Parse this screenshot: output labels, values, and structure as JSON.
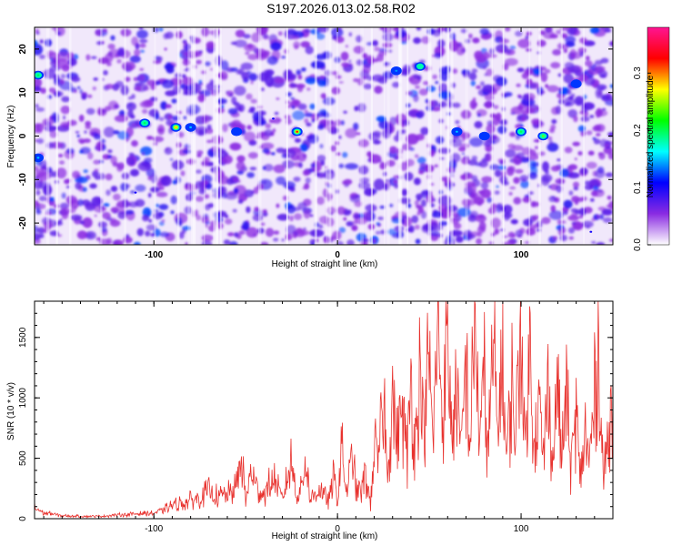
{
  "figure": {
    "title": "S197.2026.013.02.58.R02"
  },
  "chart_data": [
    {
      "type": "heatmap",
      "title": "S197.2026.013.02.58.R02",
      "xlabel": "Height of straight line (km)",
      "ylabel": "Frequency (Hz)",
      "xlim": [
        -165,
        150
      ],
      "ylim": [
        -25,
        25
      ],
      "xticks": [
        -100,
        0,
        100
      ],
      "yticks": [
        -20,
        -10,
        0,
        10,
        20
      ],
      "colorbar": {
        "label": "Normalized spectral amplitude",
        "range": [
          0.0,
          0.38
        ],
        "ticks": [
          0.0,
          0.1,
          0.2,
          0.3
        ],
        "colors": [
          "#ffffff",
          "#8a2be2",
          "#0000ff",
          "#00ffff",
          "#00ff00",
          "#ffff00",
          "#ff0000",
          "#ff1493"
        ]
      },
      "hotspots": [
        {
          "x": -105,
          "y": 3,
          "value": 0.2
        },
        {
          "x": -88,
          "y": 2,
          "value": 0.28
        },
        {
          "x": -80,
          "y": 2,
          "value": 0.15
        },
        {
          "x": -55,
          "y": 1,
          "value": 0.12
        },
        {
          "x": -22,
          "y": 1,
          "value": 0.32
        },
        {
          "x": -35,
          "y": 4,
          "value": 0.1
        },
        {
          "x": 45,
          "y": 16,
          "value": 0.18
        },
        {
          "x": 32,
          "y": 15,
          "value": 0.14
        },
        {
          "x": 65,
          "y": 1,
          "value": 0.15
        },
        {
          "x": 80,
          "y": 0,
          "value": 0.12
        },
        {
          "x": 100,
          "y": 1,
          "value": 0.2
        },
        {
          "x": 112,
          "y": 0,
          "value": 0.24
        },
        {
          "x": 130,
          "y": 12,
          "value": 0.12
        },
        {
          "x": -163,
          "y": 14,
          "value": 0.2
        },
        {
          "x": -163,
          "y": -5,
          "value": 0.15
        },
        {
          "x": -110,
          "y": -13,
          "value": 0.1
        },
        {
          "x": 138,
          "y": -22,
          "value": 0.1
        }
      ]
    },
    {
      "type": "line",
      "xlabel": "Height of straight line (km)",
      "ylabel": "SNR (10 * v/v)",
      "xlim": [
        -165,
        150
      ],
      "ylim": [
        0,
        1800
      ],
      "xticks": [
        -100,
        0,
        100
      ],
      "yticks": [
        0,
        500,
        1000,
        1500
      ],
      "series": [
        {
          "color": "#e8322e",
          "x": [
            -165,
            -160,
            -150,
            -140,
            -130,
            -120,
            -110,
            -100,
            -95,
            -90,
            -85,
            -80,
            -75,
            -70,
            -65,
            -60,
            -55,
            -52,
            -50,
            -47,
            -45,
            -40,
            -35,
            -30,
            -25,
            -22,
            -20,
            -17,
            -15,
            -10,
            -5,
            -2,
            0,
            2,
            5,
            8,
            10,
            13,
            15,
            18,
            20,
            22,
            25,
            27,
            30,
            33,
            35,
            38,
            40,
            42,
            45,
            47,
            50,
            52,
            55,
            57,
            60,
            62,
            65,
            67,
            70,
            72,
            75,
            77,
            80,
            82,
            85,
            87,
            90,
            92,
            95,
            97,
            100,
            102,
            105,
            107,
            110,
            112,
            115,
            117,
            120,
            122,
            125,
            127,
            130,
            132,
            135,
            137,
            140,
            142,
            145,
            147,
            150
          ],
          "values": [
            90,
            50,
            25,
            20,
            20,
            30,
            40,
            45,
            70,
            110,
            130,
            150,
            180,
            230,
            180,
            200,
            260,
            500,
            150,
            400,
            280,
            200,
            340,
            150,
            480,
            190,
            230,
            530,
            150,
            250,
            150,
            340,
            120,
            610,
            200,
            520,
            260,
            230,
            390,
            120,
            650,
            420,
            1080,
            350,
            1000,
            640,
            960,
            480,
            1200,
            620,
            1230,
            700,
            1400,
            560,
            1780,
            800,
            1460,
            690,
            1180,
            480,
            1300,
            600,
            1620,
            700,
            1140,
            540,
            1420,
            700,
            1340,
            480,
            1120,
            640,
            1770,
            560,
            1360,
            700,
            960,
            480,
            1180,
            400,
            1240,
            500,
            1000,
            400,
            880,
            360,
            700,
            450,
            1000,
            1440,
            320,
            600,
            1100
          ]
        }
      ]
    }
  ]
}
